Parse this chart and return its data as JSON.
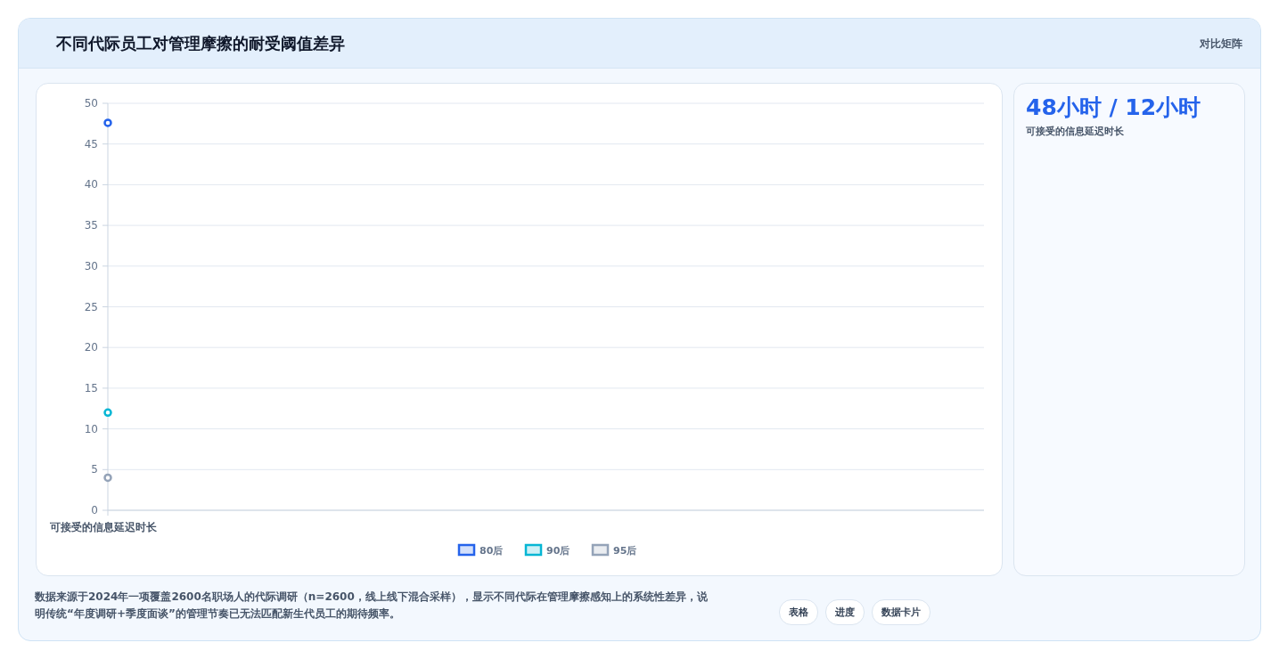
{
  "chart_data": [
    {
      "type": "line",
      "title": "不同代际员工对管理摩擦的耐受阈值差异",
      "categories": [
        "可接受的信息延迟时长"
      ],
      "series": [
        {
          "name": "80后",
          "color": "#2563eb",
          "values": [
            47.6
          ]
        },
        {
          "name": "90后",
          "color": "#06b6d4",
          "values": [
            12
          ]
        },
        {
          "name": "95后",
          "color": "#94a3b8",
          "values": [
            4
          ]
        }
      ],
      "ylim": [
        0,
        50
      ],
      "yticks": [
        0,
        5,
        10,
        15,
        20,
        25,
        30,
        35,
        40,
        45,
        50
      ],
      "grid": "y",
      "legend": "bottom",
      "marker": "circle",
      "annotations": [
        "对比矩阵",
        "数据来源于2024年一项覆盖2600名职场人的代际调研（n=2600，线上线下混合采样），显示不同代际在管理摩擦感知上的系统性差异，说明传统“年度调研+季度面谈”的管理节奏已无法匹配新生代员工的期待频率。",
        "表格",
        "进度",
        "数据卡片"
      ]
    },
    {
      "type": "other",
      "title": "48小时 / 12小时",
      "subtitle": "可接受的信息延迟时长"
    }
  ]
}
